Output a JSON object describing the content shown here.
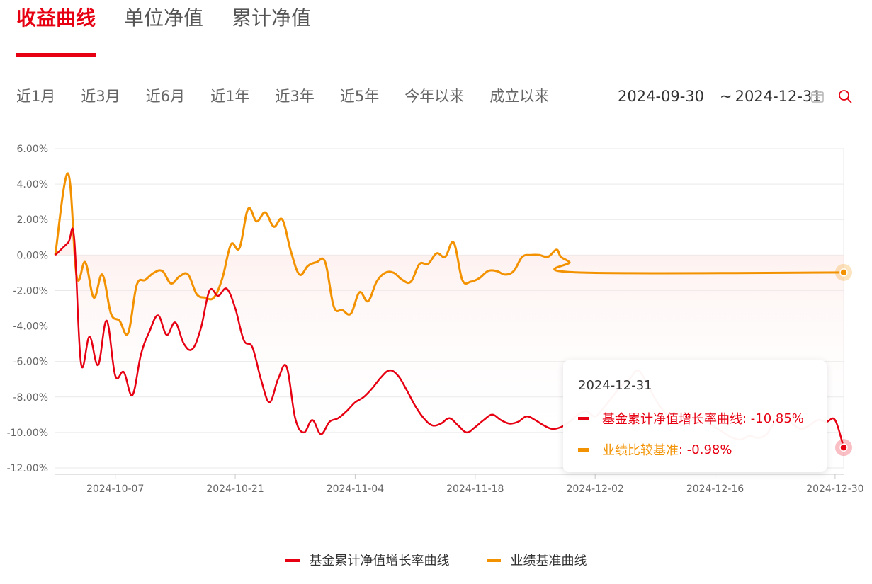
{
  "tabs": [
    {
      "label": "收益曲线",
      "active": true
    },
    {
      "label": "单位净值",
      "active": false
    },
    {
      "label": "累计净值",
      "active": false
    }
  ],
  "periods": [
    "近1月",
    "近3月",
    "近6月",
    "近1年",
    "近3年",
    "近5年",
    "今年以来",
    "成立以来"
  ],
  "daterange": {
    "start": "2024-09-30",
    "separator": "~",
    "end": "2024-12-31"
  },
  "icons": {
    "calendar": "calendar-icon",
    "search": "search-icon"
  },
  "colors": {
    "fund": "#e60012",
    "benchmark": "#f39200",
    "active_tab": "#e60012"
  },
  "tooltip": {
    "date": "2024-12-31",
    "rows": [
      {
        "label": "基金累计净值增长率曲线",
        "value": ": -10.85%",
        "color": "#e60012"
      },
      {
        "label": "业绩比较基准",
        "value": ": -0.98%",
        "color": "#f39200"
      }
    ]
  },
  "legend": [
    {
      "label": "基金累计净值增长率曲线",
      "color": "#e60012"
    },
    {
      "label": "业绩基准曲线",
      "color": "#f39200"
    }
  ],
  "chart_data": {
    "type": "line",
    "y_ticks": [
      "6.00%",
      "4.00%",
      "2.00%",
      "0.00%",
      "-2.00%",
      "-4.00%",
      "-6.00%",
      "-8.00%",
      "-10.00%",
      "-12.00%"
    ],
    "ylim": [
      -12,
      6
    ],
    "x_ticks": [
      {
        "label": "2024-10-07",
        "x": 7
      },
      {
        "label": "2024-10-21",
        "x": 21
      },
      {
        "label": "2024-11-04",
        "x": 35
      },
      {
        "label": "2024-11-18",
        "x": 49
      },
      {
        "label": "2024-12-02",
        "x": 63
      },
      {
        "label": "2024-12-16",
        "x": 77
      },
      {
        "label": "2024-12-30",
        "x": 91
      }
    ],
    "xlim": [
      0,
      92
    ],
    "grid": true,
    "legend_position": "bottom",
    "series": [
      {
        "name": "基金累计净值增长率曲线",
        "color": "#e60012",
        "points": [
          [
            0,
            0
          ],
          [
            1.5,
            0.7
          ],
          [
            2.2,
            1.0
          ],
          [
            3,
            -6.1
          ],
          [
            4,
            -4.6
          ],
          [
            5,
            -6.2
          ],
          [
            6,
            -3.7
          ],
          [
            7,
            -6.8
          ],
          [
            8,
            -6.6
          ],
          [
            9,
            -7.9
          ],
          [
            10,
            -5.6
          ],
          [
            11,
            -4.3
          ],
          [
            12,
            -3.4
          ],
          [
            13,
            -4.5
          ],
          [
            14,
            -3.8
          ],
          [
            15,
            -5.0
          ],
          [
            16,
            -5.3
          ],
          [
            17,
            -4.1
          ],
          [
            18,
            -2.0
          ],
          [
            19,
            -2.3
          ],
          [
            20,
            -1.9
          ],
          [
            21,
            -3.0
          ],
          [
            22,
            -4.8
          ],
          [
            23,
            -5.2
          ],
          [
            24,
            -7.0
          ],
          [
            25,
            -8.3
          ],
          [
            26,
            -7.0
          ],
          [
            27,
            -6.3
          ],
          [
            28,
            -9.2
          ],
          [
            29,
            -10.0
          ],
          [
            30,
            -9.3
          ],
          [
            31,
            -10.1
          ],
          [
            32,
            -9.4
          ],
          [
            33,
            -9.2
          ],
          [
            34,
            -8.8
          ],
          [
            35,
            -8.3
          ],
          [
            36,
            -8.0
          ],
          [
            37,
            -7.5
          ],
          [
            38,
            -6.9
          ],
          [
            39,
            -6.5
          ],
          [
            40,
            -6.8
          ],
          [
            41,
            -7.6
          ],
          [
            42,
            -8.5
          ],
          [
            43,
            -9.2
          ],
          [
            44,
            -9.6
          ],
          [
            45,
            -9.5
          ],
          [
            46,
            -9.2
          ],
          [
            47,
            -9.6
          ],
          [
            48,
            -10.0
          ],
          [
            49,
            -9.7
          ],
          [
            50,
            -9.3
          ],
          [
            51,
            -9.0
          ],
          [
            52,
            -9.3
          ],
          [
            53,
            -9.5
          ],
          [
            54,
            -9.4
          ],
          [
            55,
            -9.1
          ],
          [
            56,
            -9.3
          ],
          [
            57,
            -9.6
          ],
          [
            58,
            -9.8
          ],
          [
            59,
            -9.7
          ],
          [
            60,
            -9.4
          ],
          [
            61,
            -9.0
          ],
          [
            62,
            -8.8
          ],
          [
            63,
            -9.1
          ],
          [
            64,
            -8.6
          ],
          [
            65,
            -8.0
          ],
          [
            66,
            -7.4
          ],
          [
            67,
            -7.0
          ],
          [
            68,
            -6.5
          ],
          [
            69,
            -7.2
          ],
          [
            70,
            -8.1
          ],
          [
            71,
            -8.8
          ],
          [
            72,
            -9.3
          ],
          [
            73,
            -9.6
          ],
          [
            74,
            -9.4
          ],
          [
            75,
            -9.1
          ],
          [
            76,
            -9.4
          ],
          [
            77,
            -9.7
          ],
          [
            78,
            -10.0
          ],
          [
            79,
            -10.3
          ],
          [
            80,
            -10.4
          ],
          [
            81,
            -10.2
          ],
          [
            82,
            -10.3
          ],
          [
            83,
            -10.1
          ],
          [
            84,
            -9.4
          ],
          [
            85,
            -9.2
          ],
          [
            86,
            -9.5
          ],
          [
            87,
            -9.8
          ],
          [
            88,
            -9.6
          ],
          [
            89,
            -9.3
          ],
          [
            90,
            -9.4
          ],
          [
            91,
            -9.3
          ],
          [
            92,
            -10.85
          ]
        ]
      },
      {
        "name": "业绩比较基准",
        "color": "#f39200",
        "points": [
          [
            0,
            0
          ],
          [
            1.5,
            4.6
          ],
          [
            2.5,
            -1.2
          ],
          [
            3.5,
            -0.4
          ],
          [
            4.5,
            -2.4
          ],
          [
            5.5,
            -1.1
          ],
          [
            6.5,
            -3.3
          ],
          [
            7.5,
            -3.7
          ],
          [
            8.5,
            -4.4
          ],
          [
            9.5,
            -1.7
          ],
          [
            10.5,
            -1.4
          ],
          [
            11.5,
            -1.0
          ],
          [
            12.5,
            -0.9
          ],
          [
            13.5,
            -1.6
          ],
          [
            14.5,
            -1.2
          ],
          [
            15.5,
            -1.1
          ],
          [
            16.5,
            -2.2
          ],
          [
            17.5,
            -2.4
          ],
          [
            18.5,
            -2.4
          ],
          [
            19.5,
            -1.3
          ],
          [
            20.5,
            0.6
          ],
          [
            21.5,
            0.4
          ],
          [
            22.5,
            2.6
          ],
          [
            23.5,
            1.9
          ],
          [
            24.5,
            2.4
          ],
          [
            25.5,
            1.6
          ],
          [
            26.5,
            2.0
          ],
          [
            27.5,
            0.2
          ],
          [
            28.5,
            -1.1
          ],
          [
            29.5,
            -0.6
          ],
          [
            30.5,
            -0.4
          ],
          [
            31.5,
            -0.4
          ],
          [
            32.5,
            -2.9
          ],
          [
            33.5,
            -3.1
          ],
          [
            34.5,
            -3.3
          ],
          [
            35.5,
            -2.1
          ],
          [
            36.5,
            -2.6
          ],
          [
            37.5,
            -1.5
          ],
          [
            38.5,
            -1.0
          ],
          [
            39.5,
            -1.0
          ],
          [
            40.5,
            -1.4
          ],
          [
            41.5,
            -1.5
          ],
          [
            42.5,
            -0.5
          ],
          [
            43.5,
            -0.5
          ],
          [
            44.5,
            0.1
          ],
          [
            45.5,
            -0.1
          ],
          [
            46.5,
            0.7
          ],
          [
            47.5,
            -1.4
          ],
          [
            48.5,
            -1.5
          ],
          [
            49.5,
            -1.3
          ],
          [
            50.5,
            -0.9
          ],
          [
            51.5,
            -0.9
          ],
          [
            52.5,
            -1.1
          ],
          [
            53.5,
            -0.9
          ],
          [
            54.5,
            -0.1
          ],
          [
            55.5,
            0.0
          ],
          [
            56.5,
            0.0
          ],
          [
            57.5,
            -0.1
          ],
          [
            58.5,
            0.3
          ],
          [
            59,
            -0.1
          ],
          [
            60,
            -0.4
          ],
          [
            61,
            -0.98
          ],
          [
            92,
            -0.98
          ]
        ]
      }
    ]
  }
}
